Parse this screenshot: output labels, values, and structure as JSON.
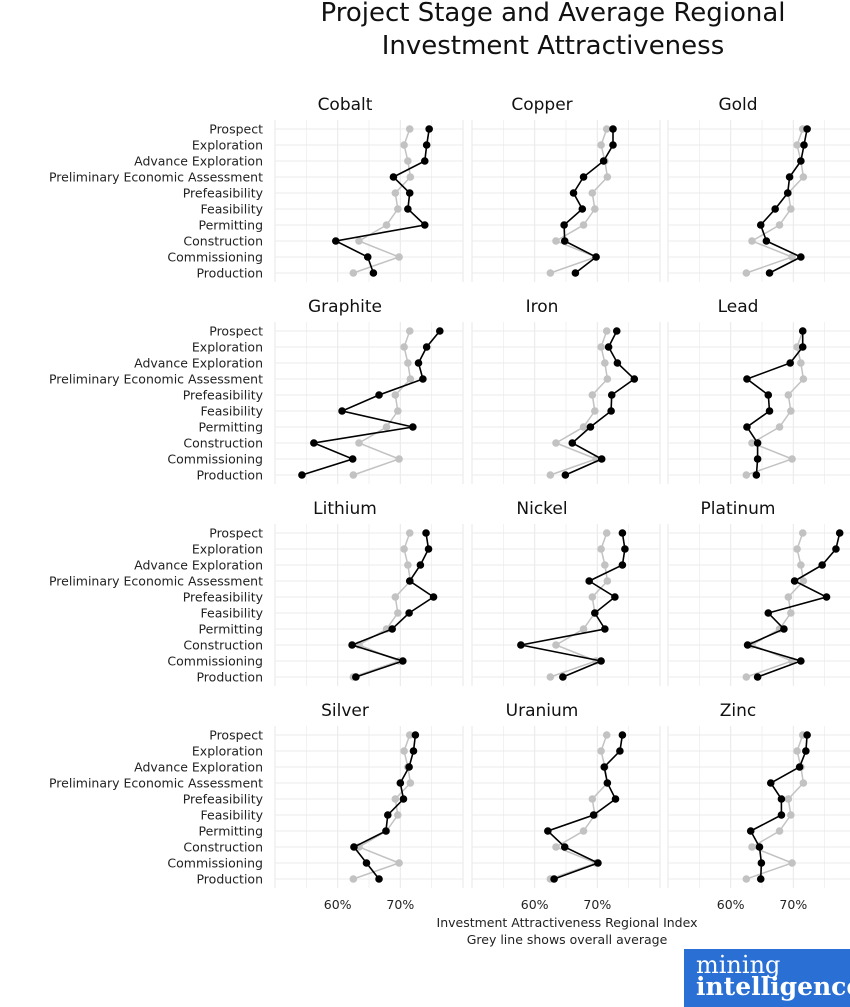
{
  "chart_data": {
    "type": "line",
    "title": [
      "Project Stage and Average Regional",
      "Investment Attractiveness"
    ],
    "stages": [
      "Prospect",
      "Exploration",
      "Advance Exploration",
      "Preliminary Economic Assessment",
      "Prefeasibility",
      "Feasibility",
      "Permitting",
      "Construction",
      "Commissioning",
      "Production"
    ],
    "x_ticks": [
      {
        "label": "60%",
        "value": 60
      },
      {
        "label": "70%",
        "value": 70
      }
    ],
    "xlim": [
      50,
      80
    ],
    "xlabel": "Investment Attractiveness Regional Index",
    "caption": "Grey line shows overall average",
    "average_series_name": "Overall average",
    "average": [
      71.5,
      70.6,
      71.2,
      71.6,
      69.2,
      69.6,
      67.8,
      63.4,
      69.8,
      62.5
    ],
    "commodities": [
      {
        "name": "Cobalt",
        "values": [
          74.6,
          74.2,
          73.9,
          68.9,
          71.5,
          71.2,
          73.9,
          59.7,
          64.8,
          65.7
        ]
      },
      {
        "name": "Copper",
        "values": [
          72.5,
          72.5,
          71.0,
          67.8,
          66.2,
          67.6,
          64.7,
          64.8,
          69.8,
          66.5
        ]
      },
      {
        "name": "Gold",
        "values": [
          72.2,
          71.7,
          71.2,
          69.4,
          69.1,
          67.1,
          64.8,
          65.7,
          71.2,
          66.2
        ]
      },
      {
        "name": "Graphite",
        "values": [
          76.3,
          74.2,
          72.9,
          73.6,
          66.6,
          60.7,
          72.0,
          56.2,
          62.4,
          54.3
        ]
      },
      {
        "name": "Iron",
        "values": [
          73.1,
          71.8,
          73.2,
          75.9,
          72.3,
          72.2,
          68.9,
          66.0,
          70.7,
          64.9
        ]
      },
      {
        "name": "Lead",
        "values": [
          71.5,
          71.5,
          69.5,
          62.6,
          66.0,
          66.2,
          62.6,
          64.3,
          64.3,
          64.1
        ]
      },
      {
        "name": "Lithium",
        "values": [
          74.1,
          74.5,
          73.2,
          71.5,
          75.3,
          71.4,
          68.7,
          62.3,
          70.4,
          62.9
        ]
      },
      {
        "name": "Nickel",
        "values": [
          74.0,
          74.4,
          74.0,
          68.7,
          72.8,
          69.6,
          71.2,
          57.8,
          70.6,
          64.5
        ]
      },
      {
        "name": "Platinum",
        "values": [
          77.4,
          76.8,
          74.6,
          70.2,
          75.3,
          66.0,
          68.5,
          62.7,
          71.2,
          64.3
        ]
      },
      {
        "name": "Silver",
        "values": [
          72.4,
          72.1,
          71.4,
          70.0,
          70.5,
          68.0,
          67.7,
          62.6,
          64.6,
          66.6
        ]
      },
      {
        "name": "Uranium",
        "values": [
          74.0,
          73.6,
          71.1,
          71.6,
          72.9,
          69.4,
          62.1,
          64.8,
          70.1,
          63.1
        ]
      },
      {
        "name": "Zinc",
        "values": [
          72.2,
          72.0,
          71.0,
          66.4,
          68.1,
          68.1,
          63.2,
          64.6,
          64.9,
          64.8
        ]
      }
    ]
  },
  "colors": {
    "average": "#c2c2c2",
    "series": "#000000",
    "grid": "#ebebeb",
    "logo": "#2a6fd4"
  },
  "logo": {
    "line1": "mining",
    "line2": "intelligence"
  }
}
